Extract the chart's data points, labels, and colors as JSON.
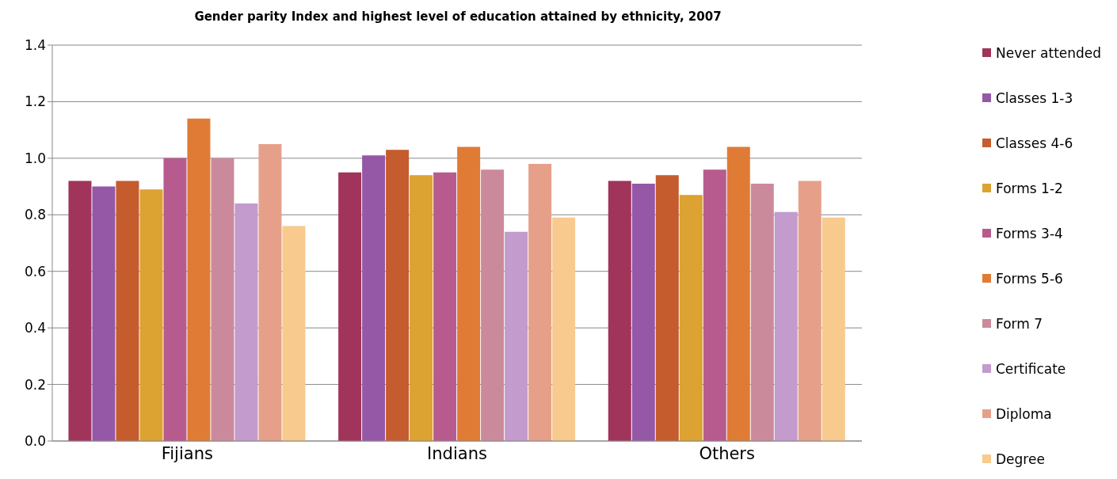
{
  "chart_data": {
    "type": "bar",
    "title": "Gender parity Index and highest level of education attained by ethnicity, 2007",
    "categories": [
      "Fijians",
      "Indians",
      "Others"
    ],
    "series": [
      {
        "name": "Never attended",
        "color": "#a0345a",
        "values": [
          0.92,
          0.95,
          0.92
        ]
      },
      {
        "name": "Classes 1-3",
        "color": "#9558a6",
        "values": [
          0.9,
          1.01,
          0.91
        ]
      },
      {
        "name": "Classes 4-6",
        "color": "#c45c2e",
        "values": [
          0.92,
          1.03,
          0.94
        ]
      },
      {
        "name": "Forms 1-2",
        "color": "#dca232",
        "values": [
          0.89,
          0.94,
          0.87
        ]
      },
      {
        "name": "Forms 3-4",
        "color": "#b75b8f",
        "values": [
          1.0,
          0.95,
          0.96
        ]
      },
      {
        "name": "Forms 5-6",
        "color": "#e07b35",
        "values": [
          1.14,
          1.04,
          1.04
        ]
      },
      {
        "name": "Form 7",
        "color": "#cb8a9b",
        "values": [
          1.0,
          0.96,
          0.91
        ]
      },
      {
        "name": "Certificate",
        "color": "#c39bcc",
        "values": [
          0.84,
          0.74,
          0.81
        ]
      },
      {
        "name": "Diploma",
        "color": "#e6a08a",
        "values": [
          1.05,
          0.98,
          0.92
        ]
      },
      {
        "name": "Degree",
        "color": "#f8ca8e",
        "values": [
          0.76,
          0.79,
          0.79
        ]
      }
    ],
    "ylim": [
      0,
      1.4
    ],
    "yticks": [
      {
        "value": 0,
        "label": "0.0"
      },
      0.2,
      0.4,
      0.6,
      0.8,
      {
        "value": 1,
        "label": "1.0"
      },
      1.2,
      1.4
    ],
    "grid": "y",
    "legend": "right"
  }
}
